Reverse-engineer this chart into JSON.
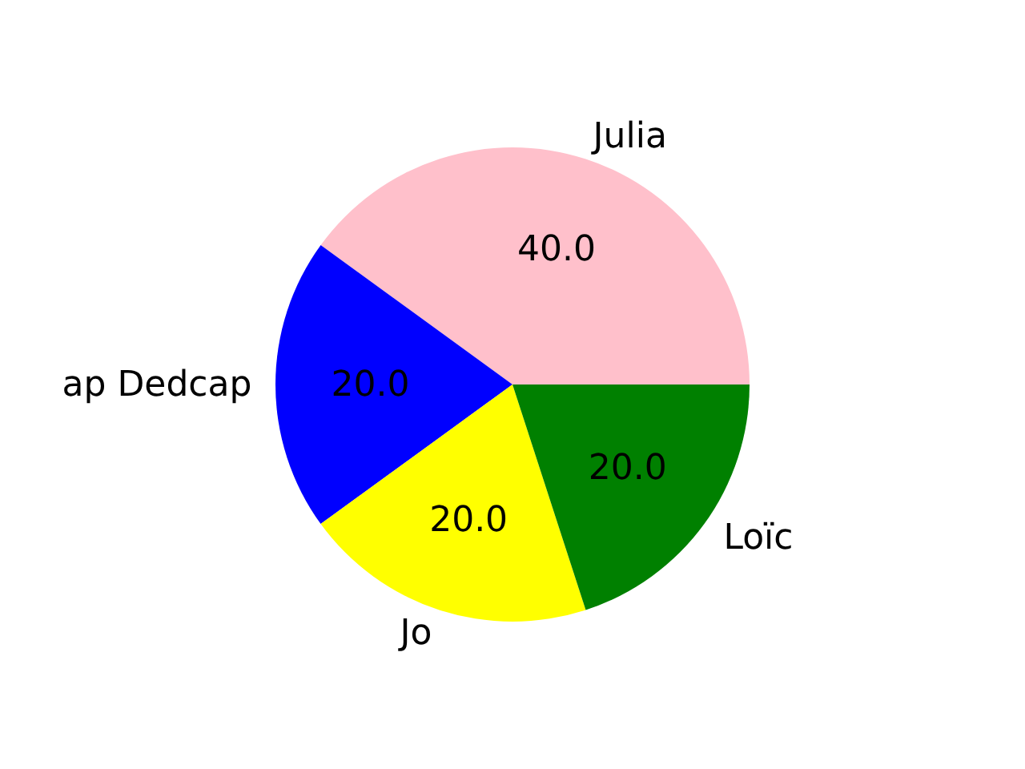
{
  "chart_data": {
    "type": "pie",
    "categories": [
      "Julia",
      "ap Dedcap",
      "Jo",
      "Loïc"
    ],
    "values": [
      40,
      20,
      20,
      20
    ],
    "colors": [
      "#ffc0cb",
      "#0000ff",
      "#ffff00",
      "#008000"
    ],
    "value_labels": [
      "40.0",
      "20.0",
      "20.0",
      "20.0"
    ]
  }
}
